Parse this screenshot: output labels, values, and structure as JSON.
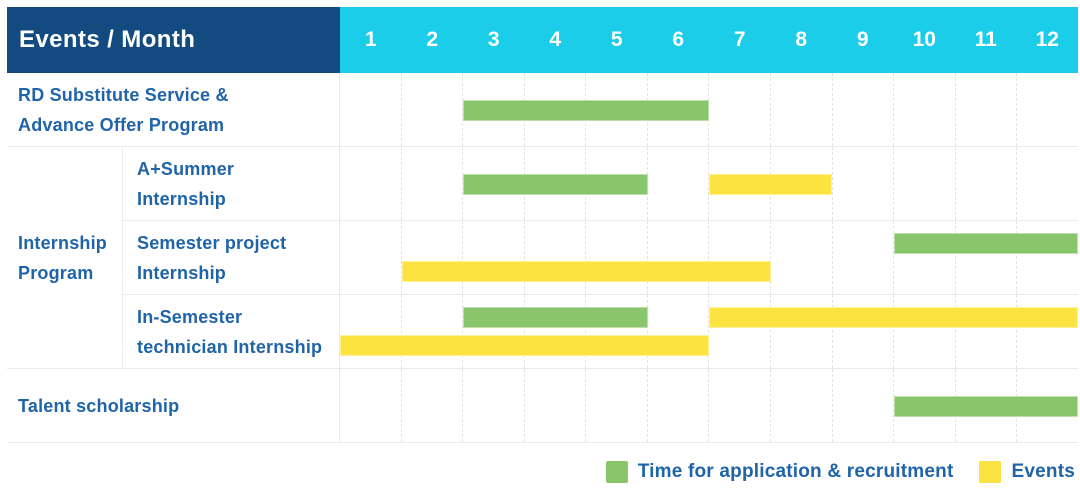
{
  "header": {
    "label": "Events / Month"
  },
  "legend": {
    "items": [
      {
        "key": "application",
        "label": "Time for application & recruitment",
        "color": "#89C56A"
      },
      {
        "key": "event",
        "label": "Events",
        "color": "#FCE342"
      }
    ]
  },
  "colors": {
    "header_bg": "#134B80",
    "month_header_bg": "#1BCDE8",
    "header_text": "#FFFFFF",
    "label_text": "#1F63A8",
    "application_bar": "#89C56A",
    "event_bar": "#FCE342",
    "grid_line": "#EAEAEA"
  },
  "chart_data": {
    "type": "bar",
    "subtype": "gantt-schedule",
    "title": "Events / Month",
    "x_ticks": [
      "1",
      "2",
      "3",
      "4",
      "5",
      "6",
      "7",
      "8",
      "9",
      "10",
      "11",
      "12"
    ],
    "x_range": [
      1,
      12
    ],
    "grid": true,
    "legend_position": "bottom-right",
    "series": [
      {
        "key": "application",
        "name": "Time for application & recruitment",
        "color": "#89C56A"
      },
      {
        "key": "event",
        "name": "Events",
        "color": "#FCE342"
      }
    ],
    "group_label_lines": {
      "Internship Program": [
        "Internship",
        "Program"
      ]
    },
    "rows": [
      {
        "group": null,
        "label": "RD Substitute Service & Advance Offer Program",
        "label_lines": [
          "RD Substitute Service &",
          "Advance Offer Program"
        ],
        "bars": [
          {
            "series": "application",
            "start_month": 3,
            "end_month": 6,
            "lane": "center"
          }
        ]
      },
      {
        "group": "Internship Program",
        "label": "A+Summer Internship",
        "label_lines": [
          "A+Summer",
          "Internship"
        ],
        "bars": [
          {
            "series": "application",
            "start_month": 3,
            "end_month": 5,
            "lane": "center"
          },
          {
            "series": "event",
            "start_month": 7,
            "end_month": 8,
            "lane": "center"
          }
        ]
      },
      {
        "group": "Internship Program",
        "label": "Semester project Internship",
        "label_lines": [
          "Semester project",
          "Internship"
        ],
        "bars": [
          {
            "series": "application",
            "start_month": 10,
            "end_month": 12,
            "lane": "top"
          },
          {
            "series": "event",
            "start_month": 2,
            "end_month": 7,
            "lane": "bottom"
          }
        ]
      },
      {
        "group": "Internship Program",
        "label": "In-Semester technician Internship",
        "label_lines": [
          "In-Semester",
          "technician Internship"
        ],
        "bars": [
          {
            "series": "application",
            "start_month": 3,
            "end_month": 5,
            "lane": "top"
          },
          {
            "series": "event",
            "start_month": 7,
            "end_month": 12,
            "lane": "top"
          },
          {
            "series": "event",
            "start_month": 1,
            "end_month": 6,
            "lane": "bottom"
          }
        ]
      },
      {
        "group": null,
        "label": "Talent scholarship",
        "label_lines": [
          "Talent scholarship"
        ],
        "bars": [
          {
            "series": "application",
            "start_month": 10,
            "end_month": 12,
            "lane": "center"
          }
        ]
      }
    ]
  }
}
